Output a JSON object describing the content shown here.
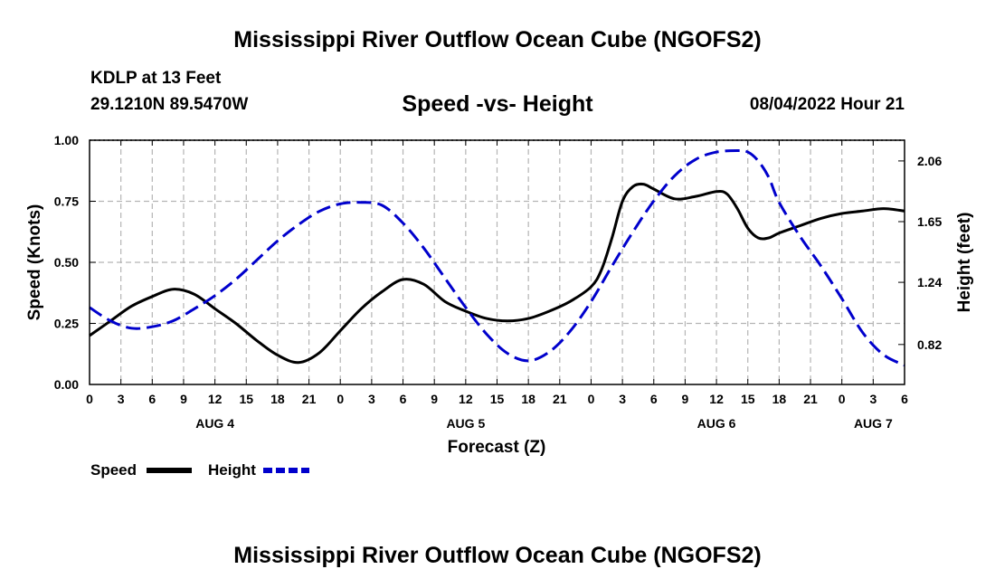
{
  "header": {
    "title": "Mississippi River Outflow Ocean Cube (NGOFS2)",
    "station": "KDLP at 13 Feet",
    "coords": "29.1210N  89.5470W",
    "subtitle": "Speed -vs- Height",
    "datetime": "08/04/2022 Hour 21"
  },
  "footer": {
    "title": "Mississippi River Outflow Ocean Cube (NGOFS2)"
  },
  "chart_data": {
    "type": "line",
    "title": "Speed -vs- Height",
    "xlabel": "Forecast (Z)",
    "ylabel": "Speed (Knots)",
    "y2label": "Height (feet)",
    "x_range_hours": [
      0,
      78
    ],
    "x_tick_hours": [
      0,
      3,
      6,
      9,
      12,
      15,
      18,
      21,
      24,
      27,
      30,
      33,
      36,
      39,
      42,
      45,
      48,
      51,
      54,
      57,
      60,
      63,
      66,
      69,
      72,
      75,
      78
    ],
    "x_tick_labels": [
      "0",
      "3",
      "6",
      "9",
      "12",
      "15",
      "18",
      "21",
      "0",
      "3",
      "6",
      "9",
      "12",
      "15",
      "18",
      "21",
      "0",
      "3",
      "6",
      "9",
      "12",
      "15",
      "18",
      "21",
      "0",
      "3",
      "6"
    ],
    "date_labels": [
      {
        "hour": 12,
        "label": "AUG 4"
      },
      {
        "hour": 36,
        "label": "AUG 5"
      },
      {
        "hour": 60,
        "label": "AUG 6"
      },
      {
        "hour": 75,
        "label": "AUG 7"
      }
    ],
    "ylim": [
      0,
      1.0
    ],
    "y_ticks": [
      0.0,
      0.25,
      0.5,
      0.75,
      1.0
    ],
    "y_tick_labels": [
      "0.00",
      "0.25",
      "0.50",
      "0.75",
      "1.00"
    ],
    "y2lim": [
      0.55,
      2.2
    ],
    "y2_ticks": [
      0.82,
      1.24,
      1.65,
      2.06
    ],
    "y2_tick_labels": [
      "0.82",
      "1.24",
      "1.65",
      "2.06"
    ],
    "series": [
      {
        "name": "Speed",
        "axis": "left",
        "color": "#000000",
        "dash": "solid",
        "points": [
          [
            0,
            0.2
          ],
          [
            2,
            0.26
          ],
          [
            4,
            0.32
          ],
          [
            6,
            0.36
          ],
          [
            8,
            0.39
          ],
          [
            10,
            0.37
          ],
          [
            12,
            0.31
          ],
          [
            14,
            0.25
          ],
          [
            16,
            0.18
          ],
          [
            18,
            0.12
          ],
          [
            20,
            0.09
          ],
          [
            22,
            0.13
          ],
          [
            24,
            0.22
          ],
          [
            26,
            0.31
          ],
          [
            28,
            0.38
          ],
          [
            30,
            0.43
          ],
          [
            32,
            0.41
          ],
          [
            34,
            0.34
          ],
          [
            36,
            0.3
          ],
          [
            38,
            0.27
          ],
          [
            40,
            0.26
          ],
          [
            42,
            0.27
          ],
          [
            44,
            0.3
          ],
          [
            46,
            0.34
          ],
          [
            48,
            0.4
          ],
          [
            49,
            0.47
          ],
          [
            50,
            0.6
          ],
          [
            51,
            0.75
          ],
          [
            52,
            0.81
          ],
          [
            53,
            0.82
          ],
          [
            54,
            0.8
          ],
          [
            56,
            0.76
          ],
          [
            58,
            0.77
          ],
          [
            60,
            0.79
          ],
          [
            61,
            0.78
          ],
          [
            62,
            0.72
          ],
          [
            63,
            0.64
          ],
          [
            64,
            0.6
          ],
          [
            65,
            0.6
          ],
          [
            66,
            0.62
          ],
          [
            68,
            0.65
          ],
          [
            70,
            0.68
          ],
          [
            72,
            0.7
          ],
          [
            74,
            0.71
          ],
          [
            76,
            0.72
          ],
          [
            78,
            0.71
          ]
        ]
      },
      {
        "name": "Height",
        "axis": "right",
        "color": "#0000cc",
        "dash": "dashed",
        "points": [
          [
            0,
            1.07
          ],
          [
            2,
            0.98
          ],
          [
            4,
            0.93
          ],
          [
            6,
            0.94
          ],
          [
            8,
            0.98
          ],
          [
            10,
            1.06
          ],
          [
            12,
            1.15
          ],
          [
            14,
            1.26
          ],
          [
            16,
            1.39
          ],
          [
            18,
            1.52
          ],
          [
            20,
            1.63
          ],
          [
            22,
            1.72
          ],
          [
            24,
            1.77
          ],
          [
            26,
            1.78
          ],
          [
            28,
            1.76
          ],
          [
            30,
            1.64
          ],
          [
            32,
            1.47
          ],
          [
            34,
            1.27
          ],
          [
            36,
            1.07
          ],
          [
            38,
            0.89
          ],
          [
            40,
            0.76
          ],
          [
            42,
            0.71
          ],
          [
            44,
            0.77
          ],
          [
            46,
            0.91
          ],
          [
            48,
            1.11
          ],
          [
            50,
            1.35
          ],
          [
            52,
            1.58
          ],
          [
            54,
            1.79
          ],
          [
            56,
            1.96
          ],
          [
            58,
            2.07
          ],
          [
            60,
            2.12
          ],
          [
            62,
            2.13
          ],
          [
            63,
            2.12
          ],
          [
            64,
            2.06
          ],
          [
            65,
            1.95
          ],
          [
            66,
            1.78
          ],
          [
            68,
            1.55
          ],
          [
            70,
            1.35
          ],
          [
            72,
            1.13
          ],
          [
            74,
            0.9
          ],
          [
            76,
            0.75
          ],
          [
            78,
            0.68
          ]
        ]
      }
    ],
    "legend": {
      "placement": "bottom-left",
      "entries": [
        "Speed",
        "Height"
      ]
    }
  }
}
